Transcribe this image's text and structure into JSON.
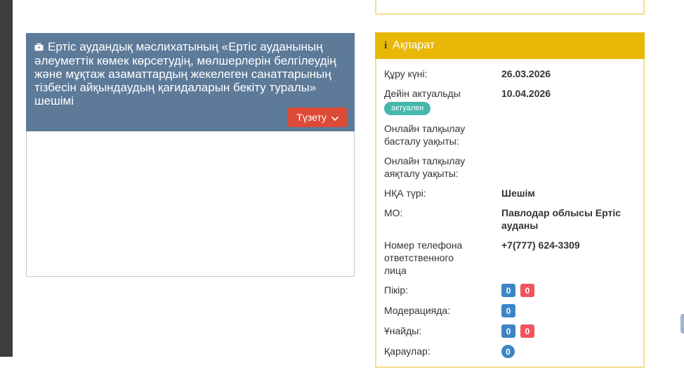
{
  "colors": {
    "left_rail": "#3d3d3d",
    "doc_header": "#5d7a99",
    "doc_body_border": "#b9cbdd",
    "edit_button": "#dc4b38",
    "info_header_bg": "#e9b807",
    "info_border": "#f7dc8c",
    "badge_blue": "#3d84c6",
    "badge_red": "#f0545f",
    "status_teal": "#45b8ab",
    "text": "#333333"
  },
  "document_card": {
    "icon": "briefcase-icon",
    "title": "Ертіс аудандық мәслихатының «Ертіс ауданының әлеуметтік көмек көрсетудің, мөлшерлерін белгілеудің және мұқтаж азаматтардың жекелеген санаттарының тізбесін айқындаудың қағидаларын бекіту туралы» шешімі",
    "edit_button_label": "Түзету"
  },
  "info_panel": {
    "title": "Ақпарат",
    "rows": [
      {
        "label": "Құру күні:",
        "value": "26.03.2026"
      },
      {
        "label": "Дейін актуальды",
        "value": "10.04.2026",
        "status_badge": "актуален"
      },
      {
        "label": "Онлайн талқылау басталу уақыты:",
        "value": ""
      },
      {
        "label": "Онлайн талқылау аяқталу уақыты:",
        "value": ""
      },
      {
        "label": "НҚА түрі:",
        "value": "Шешім"
      },
      {
        "label": "МО:",
        "value": "Павлодар облысы Ертіс ауданы"
      },
      {
        "label": "Номер телефона ответственного лица",
        "value": "+7(777) 624-3309"
      },
      {
        "label": "Пікір:",
        "badges": [
          {
            "text": "0",
            "color": "blue"
          },
          {
            "text": "0",
            "color": "red"
          }
        ]
      },
      {
        "label": "Модерацияда:",
        "badges": [
          {
            "text": "0",
            "color": "blue"
          }
        ]
      },
      {
        "label": "Ұнайды:",
        "badges": [
          {
            "text": "0",
            "color": "blue"
          },
          {
            "text": "0",
            "color": "red"
          }
        ]
      },
      {
        "label": "Қараулар:",
        "badges": [
          {
            "text": "0",
            "color": "blue",
            "round": true
          }
        ]
      }
    ]
  }
}
